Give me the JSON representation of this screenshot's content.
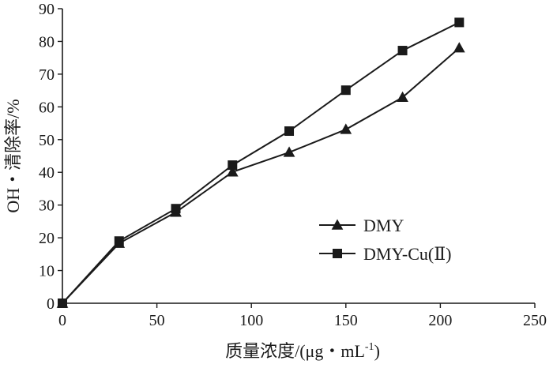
{
  "chart_data": {
    "type": "line",
    "xlabel_main": "质量浓度/(μg・mL",
    "xlabel_sup": "-1",
    "xlabel_close": ")",
    "ylabel": "OH・清除率/%",
    "xlim": [
      0,
      250
    ],
    "ylim": [
      0,
      90
    ],
    "x_ticks": [
      "0",
      "50",
      "100",
      "150",
      "200",
      "250"
    ],
    "y_ticks": [
      "0",
      "10",
      "20",
      "30",
      "40",
      "50",
      "60",
      "70",
      "80",
      "90"
    ],
    "legend_position": "bottom-right",
    "grid": false,
    "series": [
      {
        "name": "DMY",
        "marker": "triangle",
        "x": [
          0,
          30,
          60,
          90,
          120,
          150,
          180,
          210
        ],
        "y": [
          0,
          18.3,
          27.8,
          40.1,
          46.1,
          53.1,
          62.9,
          78.0
        ]
      },
      {
        "name": "DMY-Cu(Ⅱ)",
        "marker": "square",
        "x": [
          0,
          30,
          60,
          90,
          120,
          150,
          180,
          210
        ],
        "y": [
          0,
          19.0,
          28.9,
          42.2,
          52.6,
          65.1,
          77.2,
          85.8
        ]
      }
    ],
    "colors": {
      "line": "#1a1a1a",
      "background": "#ffffff"
    }
  }
}
